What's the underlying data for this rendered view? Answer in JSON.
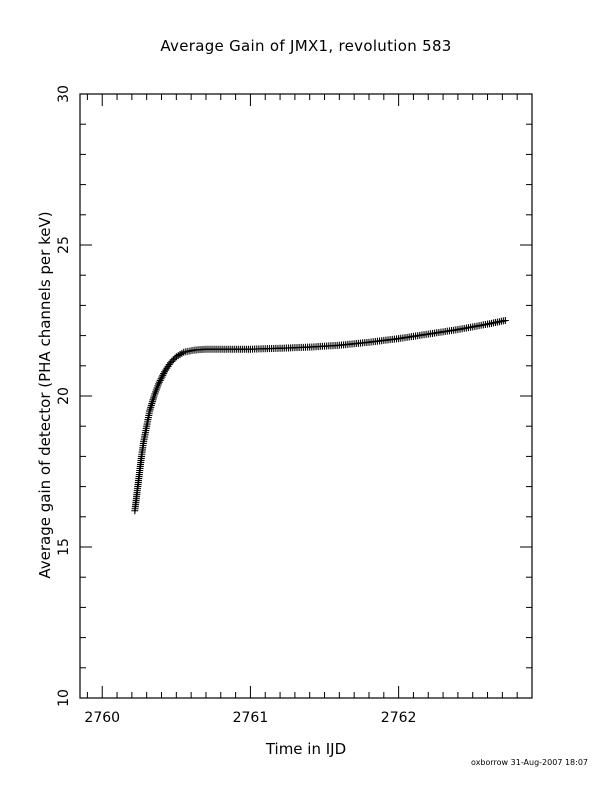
{
  "chart_data": {
    "type": "scatter",
    "title": "Average Gain of JMX1, revolution 583",
    "xlabel": "Time in IJD",
    "ylabel": "Average gain of detector (PHA channels per keV)",
    "xlim": [
      2759.85,
      2762.9
    ],
    "ylim": [
      10,
      30
    ],
    "xticks": [
      2760,
      2761,
      2762
    ],
    "yticks": [
      10,
      15,
      20,
      25,
      30
    ],
    "xtick_labels": [
      "2760",
      "2761",
      "2762"
    ],
    "ytick_labels": [
      "10",
      "15",
      "20",
      "25",
      "30"
    ],
    "marker": "plus",
    "grid": false,
    "series": [
      {
        "points": [
          [
            2760.22,
            16.2
          ],
          [
            2760.235,
            16.8
          ],
          [
            2760.25,
            17.4
          ],
          [
            2760.265,
            18.0
          ],
          [
            2760.28,
            18.5
          ],
          [
            2760.3,
            19.0
          ],
          [
            2760.32,
            19.5
          ],
          [
            2760.35,
            20.0
          ],
          [
            2760.38,
            20.4
          ],
          [
            2760.42,
            20.8
          ],
          [
            2760.46,
            21.1
          ],
          [
            2760.5,
            21.3
          ],
          [
            2760.55,
            21.45
          ],
          [
            2760.62,
            21.52
          ],
          [
            2760.7,
            21.55
          ],
          [
            2760.85,
            21.55
          ],
          [
            2761.0,
            21.55
          ],
          [
            2761.2,
            21.58
          ],
          [
            2761.4,
            21.62
          ],
          [
            2761.6,
            21.68
          ],
          [
            2761.8,
            21.78
          ],
          [
            2762.0,
            21.9
          ],
          [
            2762.2,
            22.05
          ],
          [
            2762.4,
            22.2
          ],
          [
            2762.6,
            22.38
          ],
          [
            2762.72,
            22.5
          ]
        ]
      }
    ]
  },
  "footer": {
    "stamp": "oxborrow 31-Aug-2007 18:07"
  }
}
